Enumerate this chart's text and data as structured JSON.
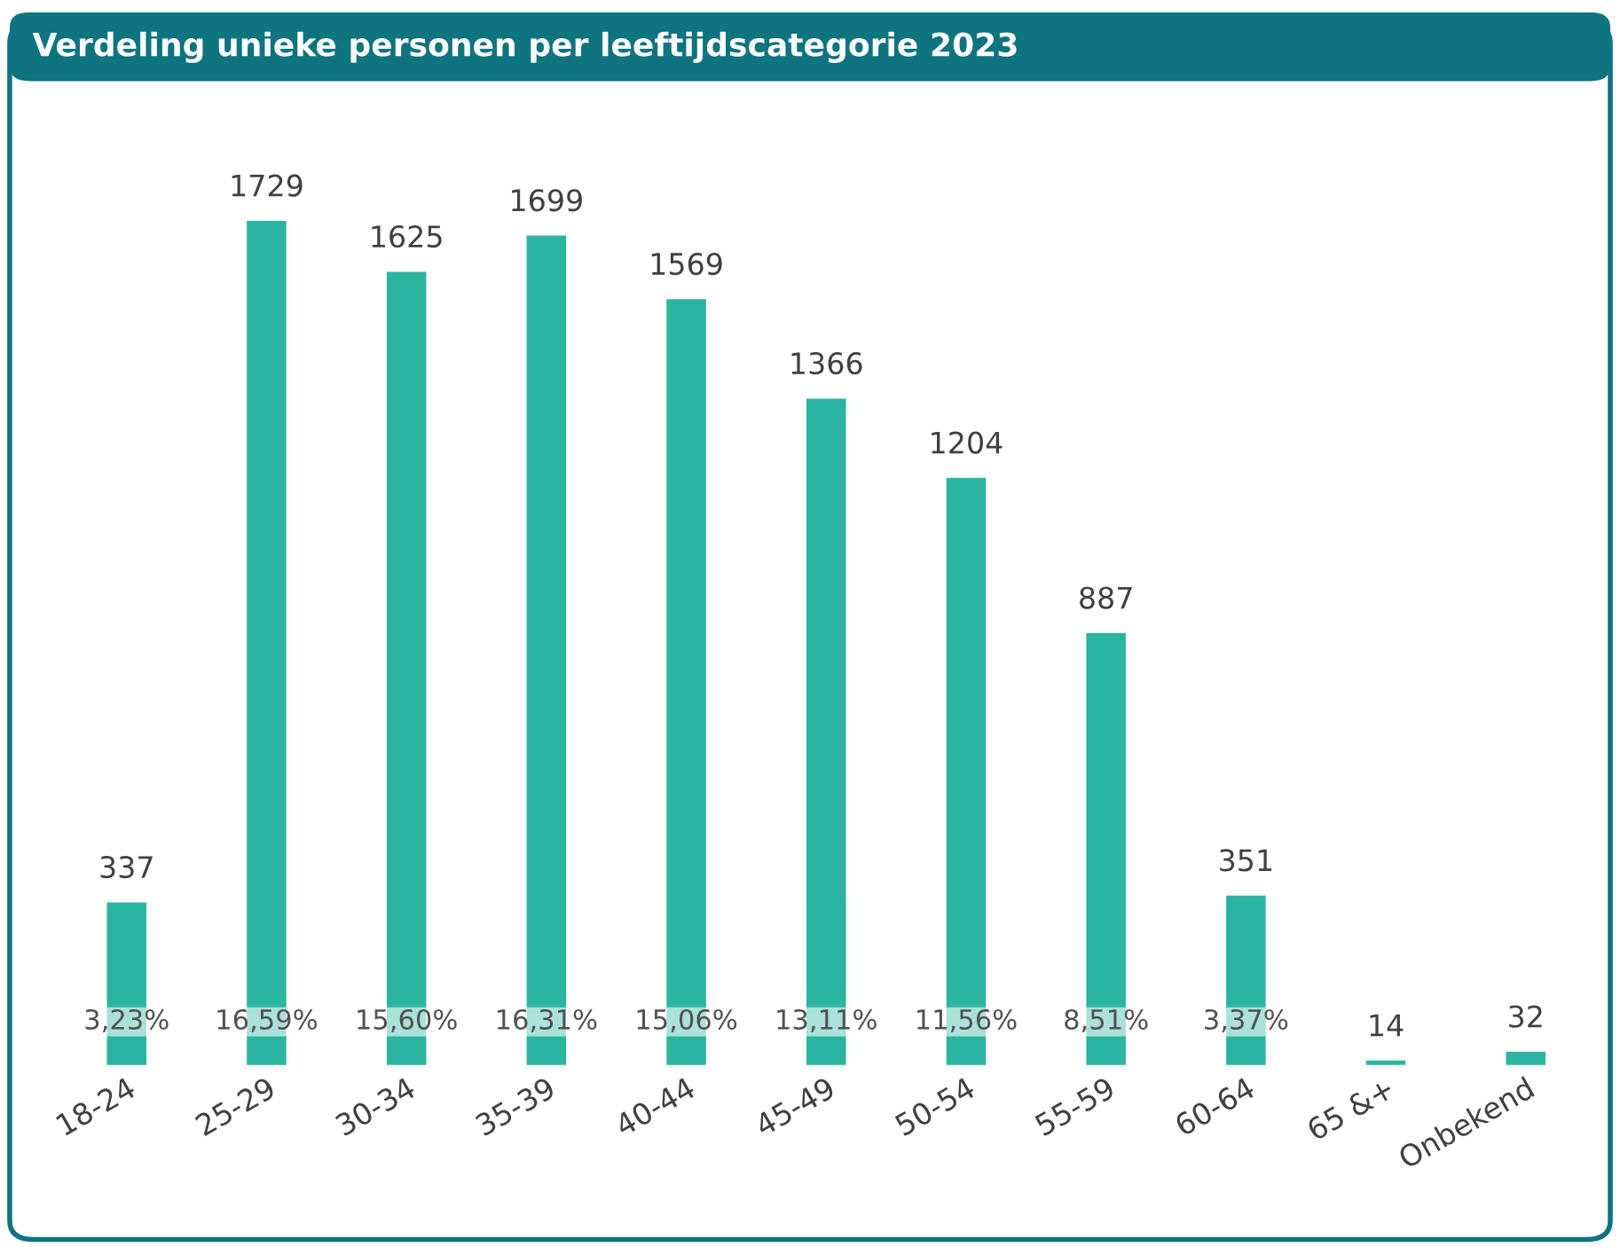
{
  "chart_data": {
    "type": "bar",
    "title": "Verdeling unieke personen per leeftijdscategorie 2023",
    "categories": [
      "18-24",
      "25-29",
      "30-34",
      "35-39",
      "40-44",
      "45-49",
      "50-54",
      "55-59",
      "60-64",
      "65 &+",
      "Onbekend"
    ],
    "values": [
      337,
      1729,
      1625,
      1699,
      1569,
      1366,
      1204,
      887,
      351,
      14,
      32
    ],
    "color": "#2bb5a0",
    "data_labels": true,
    "annotations": [
      "3,23%",
      "16,59%",
      "15,60%",
      "16,31%",
      "15,06%",
      "13,11%",
      "11,56%",
      "8,51%",
      "3,37%"
    ],
    "grid": false,
    "legend": false
  }
}
